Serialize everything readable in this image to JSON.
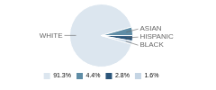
{
  "chart_data": {
    "type": "pie",
    "categories": [
      "WHITE",
      "ASIAN",
      "HISPANIC",
      "BLACK"
    ],
    "values": [
      91.3,
      4.4,
      2.8,
      1.6
    ],
    "value_labels": [
      "91.3%",
      "4.4%",
      "2.8%",
      "1.6%"
    ],
    "colors": [
      "#dce6ef",
      "#5f8da6",
      "#2c567a",
      "#c5d5e4"
    ],
    "legend": "bottom"
  }
}
